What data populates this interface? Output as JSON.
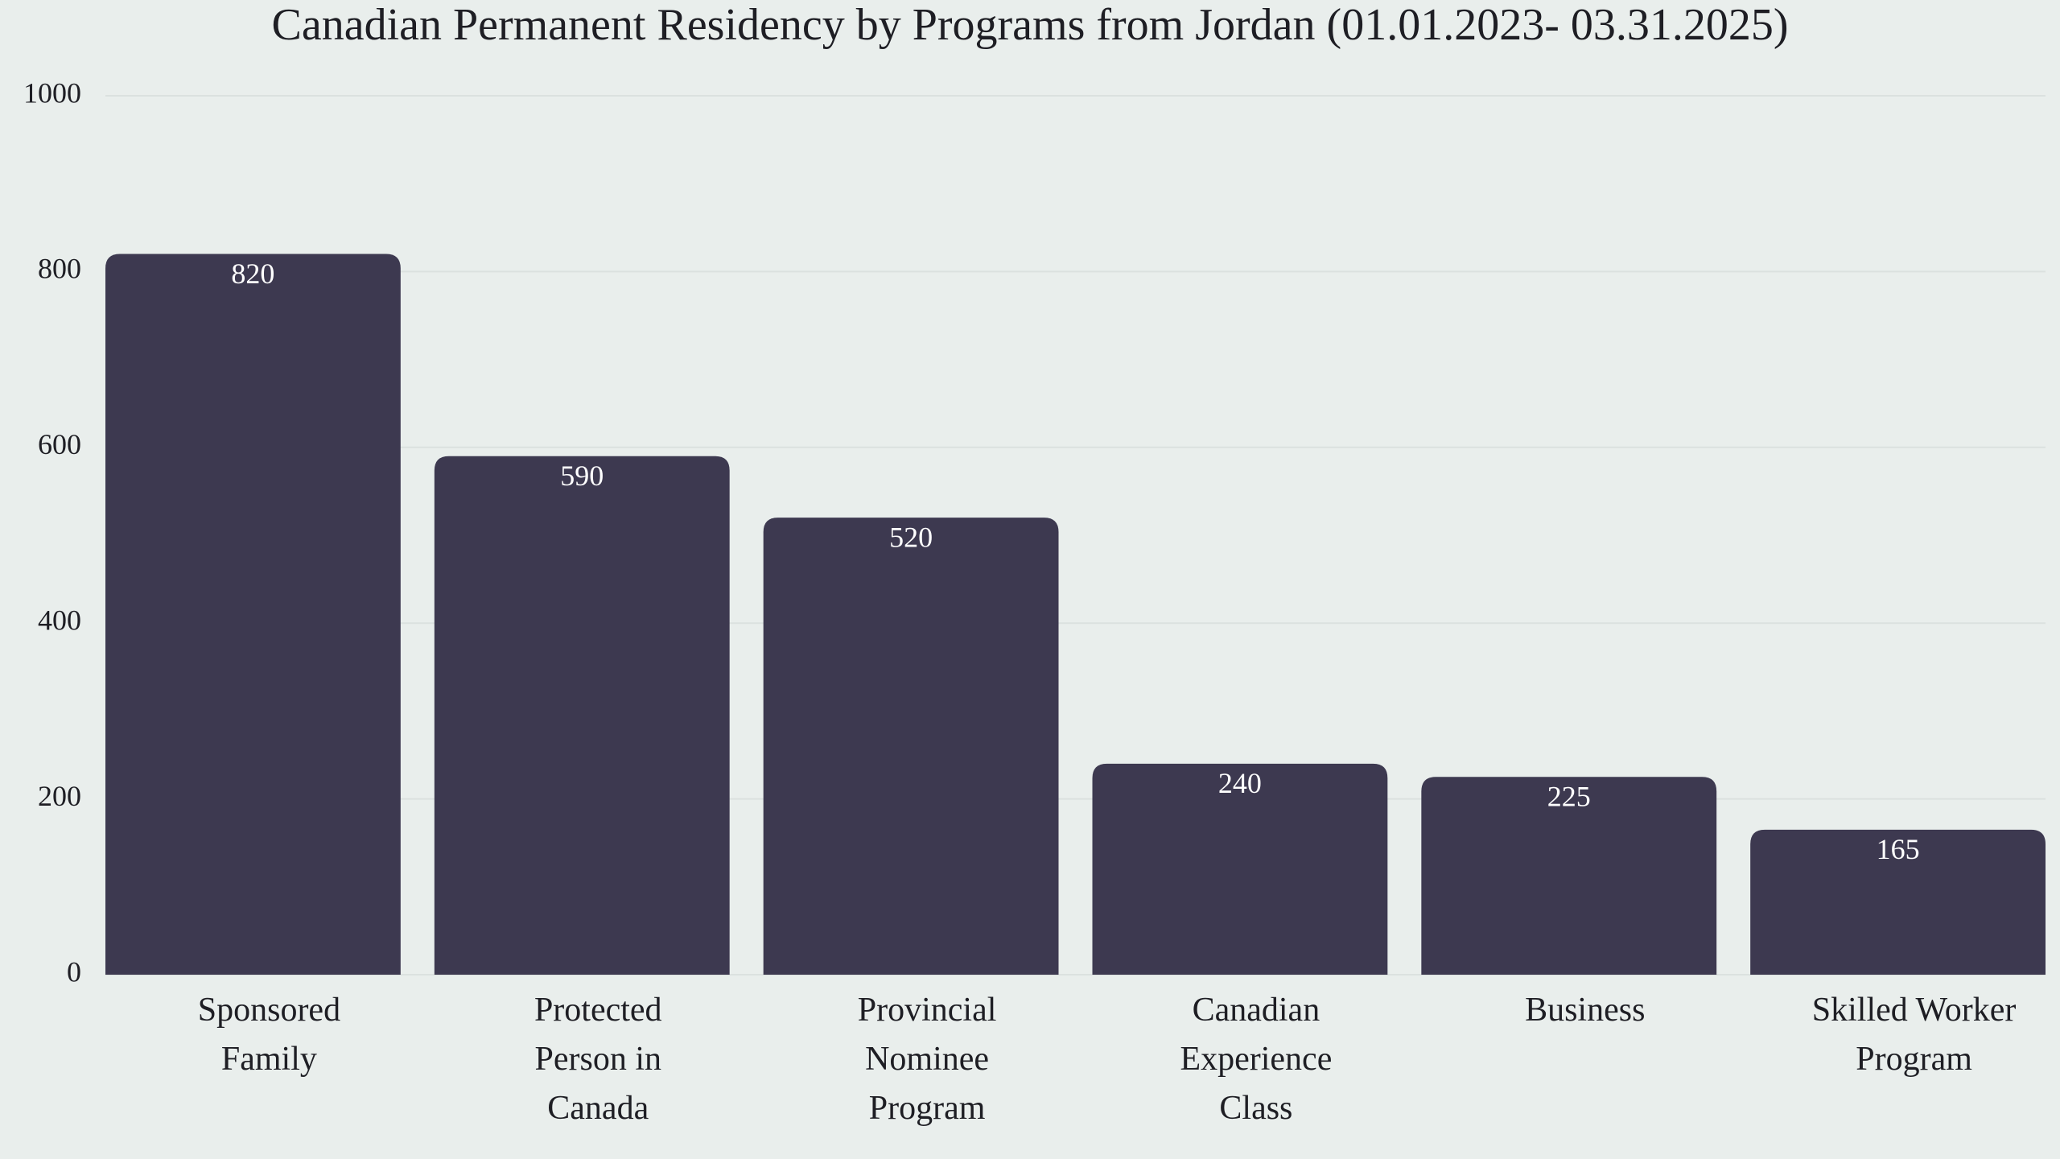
{
  "chart_data": {
    "type": "bar",
    "title": "Canadian Permanent Residency by Programs from Jordan (01.01.2023- 03.31.2025)",
    "categories": [
      "Sponsored Family",
      "Protected Person in Canada",
      "Provincial Nominee Program",
      "Canadian Experience Class",
      "Business",
      "Skilled Worker Program"
    ],
    "values": [
      820,
      590,
      520,
      240,
      225,
      165
    ],
    "color": "#3d3950",
    "ylim": [
      0,
      1000
    ],
    "yticks": [
      0,
      200,
      400,
      600,
      800,
      1000
    ],
    "grid": true
  }
}
